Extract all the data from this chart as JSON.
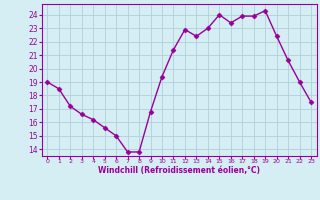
{
  "x": [
    0,
    1,
    2,
    3,
    4,
    5,
    6,
    7,
    8,
    9,
    10,
    11,
    12,
    13,
    14,
    15,
    16,
    17,
    18,
    19,
    20,
    21,
    22,
    23
  ],
  "y": [
    19,
    18.5,
    17.2,
    16.6,
    16.2,
    15.6,
    15.0,
    13.8,
    13.8,
    16.8,
    19.4,
    21.4,
    22.9,
    22.4,
    23.0,
    24.0,
    23.4,
    23.9,
    23.9,
    24.3,
    22.4,
    20.6,
    19.0,
    17.5
  ],
  "line_color": "#990099",
  "marker": "D",
  "marker_size": 2.5,
  "bg_color": "#d4eef4",
  "grid_color": "#b0d0dc",
  "xlabel": "Windchill (Refroidissement éolien,°C)",
  "xlabel_color": "#990099",
  "tick_color": "#990099",
  "yticks": [
    14,
    15,
    16,
    17,
    18,
    19,
    20,
    21,
    22,
    23,
    24
  ],
  "xticks": [
    0,
    1,
    2,
    3,
    4,
    5,
    6,
    7,
    8,
    9,
    10,
    11,
    12,
    13,
    14,
    15,
    16,
    17,
    18,
    19,
    20,
    21,
    22,
    23
  ],
  "ylim": [
    13.5,
    24.8
  ],
  "xlim": [
    -0.5,
    23.5
  ],
  "linewidth": 1.0,
  "spine_color": "#990099"
}
